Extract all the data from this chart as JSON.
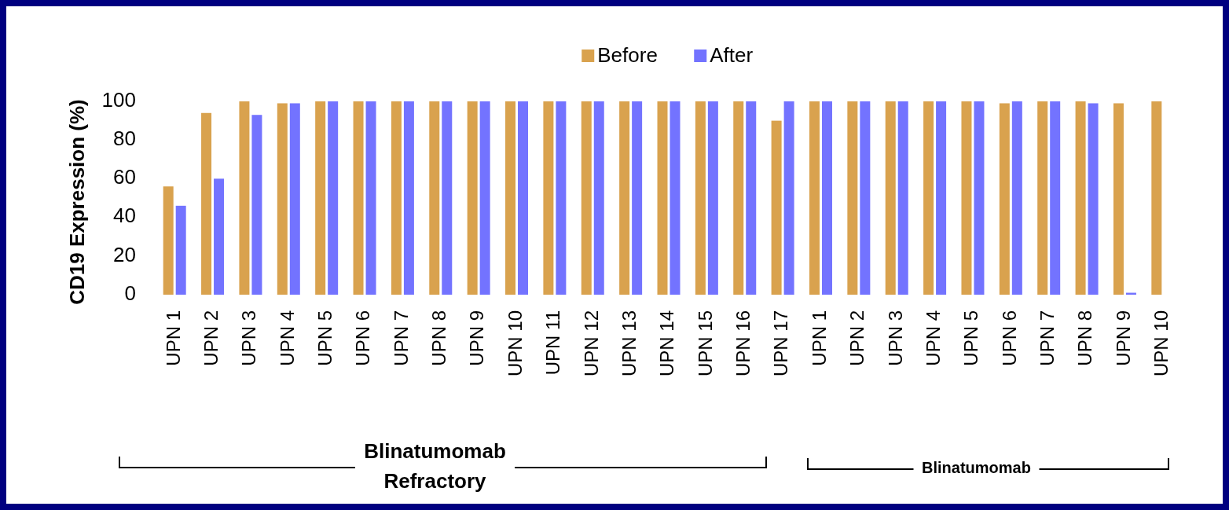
{
  "chart_data": {
    "type": "bar",
    "ylabel": "CD19 Expression (%)",
    "categories": [
      "UPN 1",
      "UPN 2",
      "UPN 3",
      "UPN 4",
      "UPN 5",
      "UPN 6",
      "UPN 7",
      "UPN 8",
      "UPN 9",
      "UPN 10",
      "UPN 11",
      "UPN 12",
      "UPN 13",
      "UPN 14",
      "UPN 15",
      "UPN 16",
      "UPN 17",
      "UPN 1",
      "UPN 2",
      "UPN 3",
      "UPN 4",
      "UPN 5",
      "UPN 6",
      "UPN 7",
      "UPN 8",
      "UPN 9",
      "UPN 10"
    ],
    "series": [
      {
        "name": "Before",
        "color": "#d9a24e",
        "values": [
          56,
          94,
          100,
          99,
          100,
          100,
          100,
          100,
          100,
          100,
          100,
          100,
          100,
          100,
          100,
          100,
          90,
          100,
          100,
          100,
          100,
          100,
          99,
          100,
          100,
          99,
          100
        ]
      },
      {
        "name": "After",
        "color": "#7373ff",
        "values": [
          46,
          60,
          93,
          99,
          100,
          100,
          100,
          100,
          100,
          100,
          100,
          100,
          100,
          100,
          100,
          100,
          100,
          100,
          100,
          100,
          100,
          100,
          100,
          100,
          99,
          1,
          null
        ]
      }
    ],
    "ylim": [
      0,
      100
    ],
    "yticks": [
      0,
      20,
      40,
      60,
      80,
      100
    ],
    "legend": "top",
    "grid": false,
    "annotations": [
      "Blinatumomab Refractory",
      "Blinatumomab"
    ]
  }
}
